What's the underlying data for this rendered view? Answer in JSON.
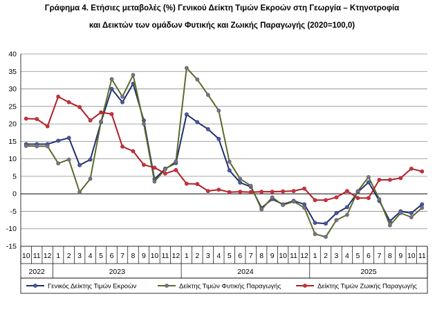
{
  "chart_data": {
    "type": "line",
    "title_line1": "Γράφημα 4. Ετήσιες μεταβολές (%) Γενικού Δείκτη Τιμών Εκροών στη Γεωργία – Κτηνοτροφία",
    "title_line2": "και Δεικτών των ομάδων Φυτικής και Ζωικής Παραγωγής (2020=100,0)",
    "xlabel": "",
    "ylabel": "",
    "ylim": [
      -15,
      40
    ],
    "yticks": [
      "-15",
      "-10",
      "-5",
      "0",
      "5",
      "10",
      "15",
      "20",
      "25",
      "30",
      "35",
      "40"
    ],
    "grid": "horizontal",
    "legend_position": "bottom",
    "months": [
      "10",
      "11",
      "12",
      "1",
      "2",
      "3",
      "4",
      "5",
      "6",
      "7",
      "8",
      "9",
      "10",
      "11",
      "12",
      "1",
      "2",
      "3",
      "4",
      "5",
      "6",
      "7",
      "8",
      "9",
      "10",
      "11",
      "12",
      "1",
      "2",
      "3",
      "4",
      "5",
      "6",
      "7",
      "8",
      "9",
      "10",
      "11"
    ],
    "years": [
      {
        "label": "2022",
        "start": 0,
        "end": 2
      },
      {
        "label": "2023",
        "start": 3,
        "end": 14
      },
      {
        "label": "2024",
        "start": 15,
        "end": 26
      },
      {
        "label": "2025",
        "start": 27,
        "end": 37
      }
    ],
    "series": [
      {
        "name": "Γενικός Δείκτης Τιμών Εκροών",
        "color": "#1f2f6b",
        "marker": "#4a5aa0",
        "values": [
          14.2,
          14.2,
          14.2,
          15.2,
          16.0,
          8.2,
          9.8,
          20.5,
          30.0,
          26.2,
          31.5,
          21.0,
          4.2,
          7.2,
          8.8,
          22.7,
          20.5,
          18.5,
          15.7,
          6.7,
          3.2,
          2.0,
          -4.0,
          -1.5,
          -3.0,
          -2.0,
          -3.0,
          -8.3,
          -8.5,
          -5.5,
          -3.8,
          0.5,
          3.3,
          -2.0,
          -7.8,
          -5.0,
          -5.5,
          -3.0
        ]
      },
      {
        "name": "Δείκτης Τιμών Φυτικής Παραγωγής",
        "color": "#5a6a2a",
        "marker": "#7a6aa8",
        "values": [
          13.7,
          13.6,
          13.6,
          8.7,
          9.8,
          0.5,
          4.3,
          20.7,
          32.8,
          27.8,
          34.0,
          20.0,
          3.5,
          7.0,
          9.3,
          36.0,
          32.7,
          28.3,
          23.8,
          9.2,
          4.3,
          2.3,
          -4.5,
          -1.0,
          -3.2,
          -2.2,
          -4.0,
          -11.5,
          -12.3,
          -7.5,
          -6.0,
          0.8,
          4.8,
          -1.5,
          -9.0,
          -5.5,
          -6.7,
          -4.0
        ]
      },
      {
        "name": "Δείκτης Τιμών Ζωικής Παραγωγής",
        "color": "#b01e28",
        "marker": "#c8323c",
        "values": [
          21.5,
          21.4,
          19.3,
          27.8,
          26.2,
          24.8,
          21.0,
          23.3,
          22.8,
          13.5,
          12.2,
          8.3,
          7.5,
          5.8,
          6.8,
          2.9,
          2.8,
          0.8,
          1.2,
          0.5,
          0.6,
          0.5,
          0.6,
          0.6,
          0.7,
          0.8,
          1.5,
          -1.8,
          -1.8,
          -1.0,
          0.8,
          -1.2,
          -1.2,
          4.0,
          4.0,
          4.5,
          7.2,
          6.4
        ]
      }
    ]
  }
}
